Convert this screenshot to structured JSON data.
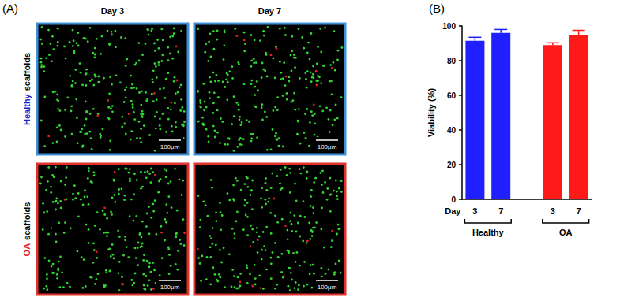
{
  "panel_a": {
    "label": "(A)",
    "columns": [
      "Day 3",
      "Day 7"
    ],
    "rows": [
      {
        "name": "Healthy",
        "suffix": "scaffolds",
        "color": "#1f1fc8",
        "scale_bars": [
          "100μm",
          "100μm"
        ]
      },
      {
        "name": "OA",
        "suffix": "scaffolds",
        "color": "#e8201a",
        "scale_bars": [
          "100μm",
          "100μm"
        ]
      }
    ]
  },
  "panel_b_label": "(B)",
  "chart_data": {
    "type": "bar",
    "ylabel": "Viability (%)",
    "x_row_label": "Day",
    "series": [
      {
        "name": "Healthy",
        "color": "#1f1fff",
        "categories": [
          "3",
          "7"
        ],
        "values": [
          91.5,
          96
        ],
        "errors": [
          2,
          2
        ]
      },
      {
        "name": "OA",
        "color": "#ff1a1a",
        "categories": [
          "3",
          "7"
        ],
        "values": [
          89,
          94.5
        ],
        "errors": [
          1.3,
          3
        ]
      }
    ],
    "ylim": [
      0,
      100
    ],
    "yticks": [
      0,
      20,
      40,
      60,
      80,
      100
    ],
    "grid": false
  }
}
